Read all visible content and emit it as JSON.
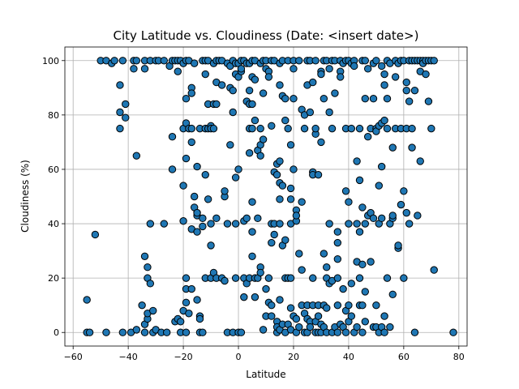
{
  "chart_data": {
    "type": "scatter",
    "title": "City Latitude vs. Cloudiness (Date: <insert date>)",
    "xlabel": "Latitude",
    "ylabel": "Cloudiness (%)",
    "xlim": [
      -63,
      83
    ],
    "ylim": [
      -5,
      105
    ],
    "xticks": [
      -60,
      -40,
      -20,
      0,
      20,
      40,
      60,
      80
    ],
    "yticks": [
      0,
      20,
      40,
      60,
      80,
      100
    ],
    "grid": true,
    "marker_color": "#1f77b4",
    "edge_color": "#000000",
    "points": [
      [
        -55,
        12
      ],
      [
        -55,
        0
      ],
      [
        -54,
        0
      ],
      [
        -52,
        36
      ],
      [
        -50,
        100
      ],
      [
        -48,
        0
      ],
      [
        -48,
        100
      ],
      [
        -46,
        99
      ],
      [
        -45,
        100
      ],
      [
        -43,
        75
      ],
      [
        -43,
        81
      ],
      [
        -43,
        91
      ],
      [
        -42,
        100
      ],
      [
        -42,
        0
      ],
      [
        -41,
        79
      ],
      [
        -41,
        84
      ],
      [
        -39,
        0
      ],
      [
        -38,
        100
      ],
      [
        -38,
        97
      ],
      [
        -37,
        100
      ],
      [
        -37,
        65
      ],
      [
        -37,
        1
      ],
      [
        -35,
        10
      ],
      [
        -34,
        100
      ],
      [
        -34,
        97
      ],
      [
        -34,
        28
      ],
      [
        -34,
        3
      ],
      [
        -34,
        0
      ],
      [
        -33,
        24
      ],
      [
        -33,
        20
      ],
      [
        -33,
        5
      ],
      [
        -33,
        7
      ],
      [
        -32,
        40
      ],
      [
        -32,
        100
      ],
      [
        -32,
        18
      ],
      [
        -31,
        8
      ],
      [
        -31,
        0
      ],
      [
        -30,
        1
      ],
      [
        -30,
        100
      ],
      [
        -29,
        100
      ],
      [
        -28,
        0
      ],
      [
        -27,
        40
      ],
      [
        -27,
        100
      ],
      [
        -26,
        0
      ],
      [
        -25,
        98
      ],
      [
        -24,
        100
      ],
      [
        -24,
        60
      ],
      [
        -24,
        72
      ],
      [
        -23,
        4
      ],
      [
        -23,
        100
      ],
      [
        -22,
        5
      ],
      [
        -22,
        100
      ],
      [
        -22,
        96
      ],
      [
        -21,
        4
      ],
      [
        -21,
        100
      ],
      [
        -21,
        0
      ],
      [
        -20,
        54
      ],
      [
        -20,
        41
      ],
      [
        -20,
        75
      ],
      [
        -20,
        8
      ],
      [
        -20,
        99
      ],
      [
        -19,
        100
      ],
      [
        -19,
        77
      ],
      [
        -19,
        20
      ],
      [
        -19,
        16
      ],
      [
        -19,
        11
      ],
      [
        -19,
        64
      ],
      [
        -19,
        86
      ],
      [
        -19,
        0
      ],
      [
        -18,
        75
      ],
      [
        -18,
        7
      ],
      [
        -18,
        100
      ],
      [
        -17,
        90
      ],
      [
        -17,
        88
      ],
      [
        -17,
        75
      ],
      [
        -17,
        70
      ],
      [
        -17,
        38
      ],
      [
        -17,
        16
      ],
      [
        -16,
        50
      ],
      [
        -16,
        46
      ],
      [
        -16,
        99
      ],
      [
        -15,
        61
      ],
      [
        -15,
        37
      ],
      [
        -15,
        43
      ],
      [
        -15,
        44
      ],
      [
        -15,
        12
      ],
      [
        -14,
        0
      ],
      [
        -14,
        6
      ],
      [
        -14,
        75
      ],
      [
        -14,
        5
      ],
      [
        -13,
        100
      ],
      [
        -13,
        39
      ],
      [
        -13,
        42
      ],
      [
        -13,
        0
      ],
      [
        -12,
        95
      ],
      [
        -12,
        58
      ],
      [
        -12,
        75
      ],
      [
        -12,
        100
      ],
      [
        -12,
        20
      ],
      [
        -11,
        49
      ],
      [
        -11,
        84
      ],
      [
        -11,
        75
      ],
      [
        -11,
        100
      ],
      [
        -10,
        76
      ],
      [
        -10,
        40
      ],
      [
        -10,
        32
      ],
      [
        -10,
        20
      ],
      [
        -10,
        75
      ],
      [
        -9,
        84
      ],
      [
        -9,
        22
      ],
      [
        -9,
        99
      ],
      [
        -9,
        75
      ],
      [
        -8,
        100
      ],
      [
        -8,
        92
      ],
      [
        -8,
        84
      ],
      [
        -8,
        20
      ],
      [
        -8,
        42
      ],
      [
        -7,
        100
      ],
      [
        -6,
        100
      ],
      [
        -6,
        20
      ],
      [
        -6,
        91
      ],
      [
        -5,
        50
      ],
      [
        -5,
        52
      ],
      [
        -5,
        19
      ],
      [
        -4,
        99
      ],
      [
        -4,
        40
      ],
      [
        -4,
        0
      ],
      [
        -3,
        98
      ],
      [
        -3,
        90
      ],
      [
        -3,
        69
      ],
      [
        -2,
        100
      ],
      [
        -2,
        89
      ],
      [
        -2,
        81
      ],
      [
        -2,
        0
      ],
      [
        -1,
        99
      ],
      [
        -1,
        40
      ],
      [
        -1,
        57
      ],
      [
        -1,
        95
      ],
      [
        -1,
        20
      ],
      [
        0,
        94
      ],
      [
        0,
        60
      ],
      [
        0,
        99
      ],
      [
        0,
        0
      ],
      [
        1,
        100
      ],
      [
        1,
        96
      ],
      [
        1,
        97
      ],
      [
        1,
        0
      ],
      [
        2,
        41
      ],
      [
        2,
        13
      ],
      [
        2,
        20
      ],
      [
        2,
        100
      ],
      [
        3,
        42
      ],
      [
        3,
        99
      ],
      [
        3,
        85
      ],
      [
        3,
        18
      ],
      [
        4,
        20
      ],
      [
        4,
        66
      ],
      [
        4,
        75
      ],
      [
        4,
        84
      ],
      [
        4,
        89
      ],
      [
        4,
        99
      ],
      [
        5,
        100
      ],
      [
        5,
        84
      ],
      [
        5,
        94
      ],
      [
        5,
        75
      ],
      [
        5,
        37
      ],
      [
        5,
        28
      ],
      [
        5,
        48
      ],
      [
        6,
        78
      ],
      [
        6,
        13
      ],
      [
        6,
        93
      ],
      [
        6,
        100
      ],
      [
        6,
        20
      ],
      [
        7,
        20
      ],
      [
        7,
        42
      ],
      [
        7,
        67
      ],
      [
        8,
        69
      ],
      [
        8,
        24
      ],
      [
        8,
        22
      ],
      [
        8,
        75
      ],
      [
        8,
        99
      ],
      [
        8,
        65
      ],
      [
        9,
        100
      ],
      [
        9,
        88
      ],
      [
        9,
        1
      ],
      [
        9,
        71
      ],
      [
        10,
        16
      ],
      [
        10,
        97
      ],
      [
        10,
        6
      ],
      [
        10,
        100
      ],
      [
        11,
        96
      ],
      [
        11,
        94
      ],
      [
        11,
        11
      ],
      [
        11,
        20
      ],
      [
        12,
        40
      ],
      [
        12,
        33
      ],
      [
        12,
        76
      ],
      [
        12,
        100
      ],
      [
        12,
        6
      ],
      [
        12,
        10
      ],
      [
        13,
        59
      ],
      [
        13,
        36
      ],
      [
        13,
        40
      ],
      [
        13,
        100
      ],
      [
        14,
        62
      ],
      [
        14,
        58
      ],
      [
        14,
        4
      ],
      [
        14,
        0
      ],
      [
        14,
        2
      ],
      [
        15,
        99
      ],
      [
        15,
        91
      ],
      [
        15,
        63
      ],
      [
        15,
        55
      ],
      [
        15,
        49
      ],
      [
        15,
        40
      ],
      [
        15,
        12
      ],
      [
        15,
        1
      ],
      [
        16,
        87
      ],
      [
        16,
        100
      ],
      [
        16,
        54
      ],
      [
        16,
        32
      ],
      [
        16,
        3
      ],
      [
        17,
        20
      ],
      [
        17,
        78
      ],
      [
        17,
        34
      ],
      [
        17,
        0
      ],
      [
        17,
        86
      ],
      [
        18,
        75
      ],
      [
        18,
        20
      ],
      [
        18,
        3
      ],
      [
        18,
        100
      ],
      [
        19,
        40
      ],
      [
        19,
        69
      ],
      [
        19,
        53
      ],
      [
        19,
        49
      ],
      [
        19,
        20
      ],
      [
        19,
        9
      ],
      [
        19,
        1
      ],
      [
        20,
        100
      ],
      [
        20,
        86
      ],
      [
        20,
        60
      ],
      [
        20,
        6
      ],
      [
        20,
        97
      ],
      [
        21,
        45
      ],
      [
        21,
        41
      ],
      [
        21,
        43
      ],
      [
        21,
        5
      ],
      [
        21,
        0
      ],
      [
        22,
        100
      ],
      [
        22,
        2
      ],
      [
        22,
        29
      ],
      [
        23,
        82
      ],
      [
        23,
        48
      ],
      [
        23,
        23
      ],
      [
        23,
        10
      ],
      [
        24,
        75
      ],
      [
        24,
        80
      ],
      [
        24,
        0
      ],
      [
        24,
        7
      ],
      [
        25,
        91
      ],
      [
        25,
        0
      ],
      [
        25,
        100
      ],
      [
        25,
        5
      ],
      [
        25,
        10
      ],
      [
        26,
        81
      ],
      [
        26,
        4
      ],
      [
        26,
        2
      ],
      [
        26,
        100
      ],
      [
        27,
        92
      ],
      [
        27,
        59
      ],
      [
        27,
        58
      ],
      [
        27,
        20
      ],
      [
        27,
        10
      ],
      [
        28,
        73
      ],
      [
        28,
        75
      ],
      [
        28,
        100
      ],
      [
        28,
        4
      ],
      [
        28,
        0
      ],
      [
        29,
        0
      ],
      [
        29,
        6
      ],
      [
        29,
        58
      ],
      [
        29,
        10
      ],
      [
        30,
        96
      ],
      [
        30,
        95
      ],
      [
        30,
        70
      ],
      [
        30,
        3
      ],
      [
        30,
        0
      ],
      [
        31,
        29
      ],
      [
        31,
        86
      ],
      [
        31,
        100
      ],
      [
        31,
        10
      ],
      [
        31,
        2
      ],
      [
        32,
        100
      ],
      [
        32,
        24
      ],
      [
        32,
        20
      ],
      [
        32,
        9
      ],
      [
        32,
        0
      ],
      [
        33,
        81
      ],
      [
        33,
        97
      ],
      [
        33,
        40
      ],
      [
        33,
        18
      ],
      [
        34,
        75
      ],
      [
        34,
        100
      ],
      [
        34,
        0
      ],
      [
        34,
        19
      ],
      [
        35,
        100
      ],
      [
        35,
        88
      ],
      [
        35,
        2
      ],
      [
        36,
        37
      ],
      [
        36,
        33
      ],
      [
        36,
        27
      ],
      [
        36,
        20
      ],
      [
        36,
        10
      ],
      [
        36,
        0
      ],
      [
        37,
        96
      ],
      [
        37,
        100
      ],
      [
        37,
        94
      ],
      [
        37,
        3
      ],
      [
        38,
        99
      ],
      [
        38,
        16
      ],
      [
        38,
        2
      ],
      [
        39,
        100
      ],
      [
        39,
        75
      ],
      [
        39,
        52
      ],
      [
        39,
        8
      ],
      [
        39,
        0
      ],
      [
        40,
        100
      ],
      [
        40,
        48
      ],
      [
        40,
        40
      ],
      [
        40,
        10
      ],
      [
        40,
        4
      ],
      [
        41,
        99
      ],
      [
        41,
        75
      ],
      [
        41,
        18
      ],
      [
        41,
        6
      ],
      [
        42,
        100
      ],
      [
        42,
        98
      ],
      [
        42,
        0
      ],
      [
        43,
        63
      ],
      [
        43,
        40
      ],
      [
        43,
        26
      ],
      [
        43,
        2
      ],
      [
        44,
        75
      ],
      [
        44,
        56
      ],
      [
        44,
        37
      ],
      [
        44,
        20
      ],
      [
        44,
        10
      ],
      [
        45,
        100
      ],
      [
        45,
        46
      ],
      [
        45,
        25
      ],
      [
        45,
        10
      ],
      [
        45,
        0
      ],
      [
        46,
        100
      ],
      [
        46,
        86
      ],
      [
        46,
        40
      ],
      [
        46,
        15
      ],
      [
        46,
        4
      ],
      [
        47,
        97
      ],
      [
        47,
        72
      ],
      [
        47,
        43
      ],
      [
        48,
        75
      ],
      [
        48,
        44
      ],
      [
        48,
        26
      ],
      [
        49,
        99
      ],
      [
        49,
        86
      ],
      [
        49,
        42
      ],
      [
        49,
        2
      ],
      [
        50,
        100
      ],
      [
        50,
        75
      ],
      [
        50,
        74
      ],
      [
        50,
        10
      ],
      [
        50,
        2
      ],
      [
        51,
        76
      ],
      [
        51,
        54
      ],
      [
        51,
        40
      ],
      [
        51,
        0
      ],
      [
        52,
        98
      ],
      [
        52,
        77
      ],
      [
        52,
        61
      ],
      [
        52,
        42
      ],
      [
        52,
        2
      ],
      [
        53,
        91
      ],
      [
        53,
        95
      ],
      [
        53,
        78
      ],
      [
        53,
        6
      ],
      [
        53,
        0
      ],
      [
        54,
        100
      ],
      [
        54,
        86
      ],
      [
        54,
        75
      ],
      [
        54,
        20
      ],
      [
        55,
        99
      ],
      [
        55,
        40
      ],
      [
        55,
        2
      ],
      [
        56,
        68
      ],
      [
        56,
        42
      ],
      [
        56,
        43
      ],
      [
        56,
        14
      ],
      [
        57,
        100
      ],
      [
        57,
        94
      ],
      [
        57,
        75
      ],
      [
        58,
        99
      ],
      [
        58,
        31
      ],
      [
        58,
        32
      ],
      [
        59,
        100
      ],
      [
        59,
        75
      ],
      [
        59,
        47
      ],
      [
        60,
        100
      ],
      [
        60,
        52
      ],
      [
        60,
        20
      ],
      [
        61,
        89
      ],
      [
        61,
        92
      ],
      [
        61,
        75
      ],
      [
        61,
        44
      ],
      [
        62,
        100
      ],
      [
        62,
        85
      ],
      [
        62,
        40
      ],
      [
        63,
        100
      ],
      [
        63,
        75
      ],
      [
        63,
        68
      ],
      [
        64,
        100
      ],
      [
        64,
        89
      ],
      [
        64,
        0
      ],
      [
        65,
        100
      ],
      [
        65,
        43
      ],
      [
        66,
        100
      ],
      [
        66,
        96
      ],
      [
        66,
        63
      ],
      [
        67,
        100
      ],
      [
        67,
        99
      ],
      [
        68,
        100
      ],
      [
        68,
        95
      ],
      [
        69,
        100
      ],
      [
        69,
        85
      ],
      [
        70,
        100
      ],
      [
        70,
        75
      ],
      [
        71,
        100
      ],
      [
        71,
        23
      ],
      [
        78,
        0
      ]
    ]
  }
}
